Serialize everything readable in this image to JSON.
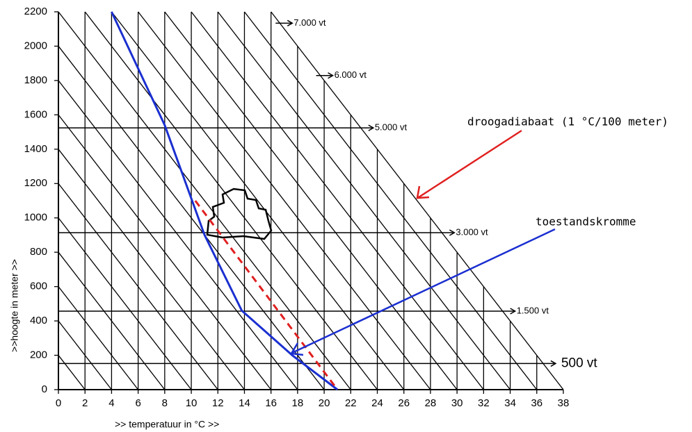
{
  "chart_data": {
    "type": "line",
    "xlabel": ">> temperatuur in °C >>",
    "ylabel": ">>hoogte in meter >>",
    "xlim": [
      0,
      38
    ],
    "xticks": [
      0,
      2,
      4,
      6,
      8,
      10,
      12,
      14,
      16,
      18,
      20,
      22,
      24,
      26,
      28,
      30,
      32,
      34,
      36,
      38
    ],
    "ylim": [
      0,
      2200
    ],
    "yticks": [
      0,
      200,
      400,
      600,
      800,
      1000,
      1200,
      1400,
      1600,
      1800,
      2000,
      2200
    ],
    "adiabat_lapse": 0.01,
    "levels": [
      {
        "value": 152,
        "label": "500 vt"
      },
      {
        "value": 457,
        "label": "1.500 vt"
      },
      {
        "value": 914,
        "label": "3.000 vt"
      },
      {
        "value": 1524,
        "label": "5.000 vt"
      },
      {
        "value": 1829,
        "label": "6.000 vt"
      },
      {
        "value": 2134,
        "label": "7.000 vt"
      }
    ],
    "series": [
      {
        "name": "toestandskromme",
        "color": "#1a2fd0",
        "dashed": false,
        "x": [
          4,
          8,
          11,
          13.8,
          17.6,
          21
        ],
        "values": [
          2200,
          1540,
          900,
          460,
          200,
          0
        ]
      },
      {
        "name": "droogadiabaat (1 °C/100 meter)",
        "color": "#e02020",
        "dashed": true,
        "x": [
          10.3,
          21
        ],
        "values": [
          1100,
          0
        ]
      }
    ]
  }
}
